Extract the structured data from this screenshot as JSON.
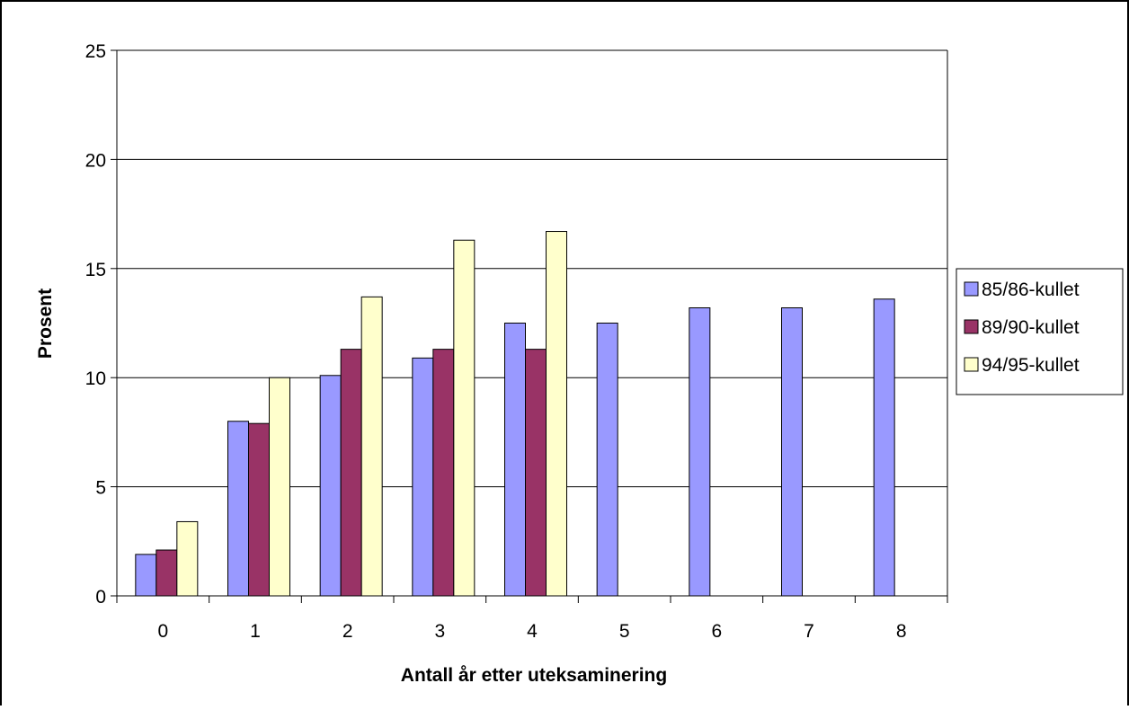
{
  "chart_data": {
    "type": "bar",
    "title": "",
    "xlabel": "Antall år etter uteksaminering",
    "ylabel": "Prosent",
    "categories": [
      "0",
      "1",
      "2",
      "3",
      "4",
      "5",
      "6",
      "7",
      "8"
    ],
    "ylim": [
      0,
      25
    ],
    "yticks": [
      "0",
      "5",
      "10",
      "15",
      "20",
      "25"
    ],
    "grid": true,
    "legend_position": "right",
    "series": [
      {
        "name": "85/86-kullet",
        "color": "#9999ff",
        "values": [
          1.9,
          8.0,
          10.1,
          10.9,
          12.5,
          12.5,
          13.2,
          13.2,
          13.6
        ]
      },
      {
        "name": "89/90-kullet",
        "color": "#993366",
        "values": [
          2.1,
          7.9,
          11.3,
          11.3,
          11.3,
          null,
          null,
          null,
          null
        ]
      },
      {
        "name": "94/95-kullet",
        "color": "#ffffcc",
        "values": [
          3.4,
          10.0,
          13.7,
          16.3,
          16.7,
          null,
          null,
          null,
          null
        ]
      }
    ]
  }
}
